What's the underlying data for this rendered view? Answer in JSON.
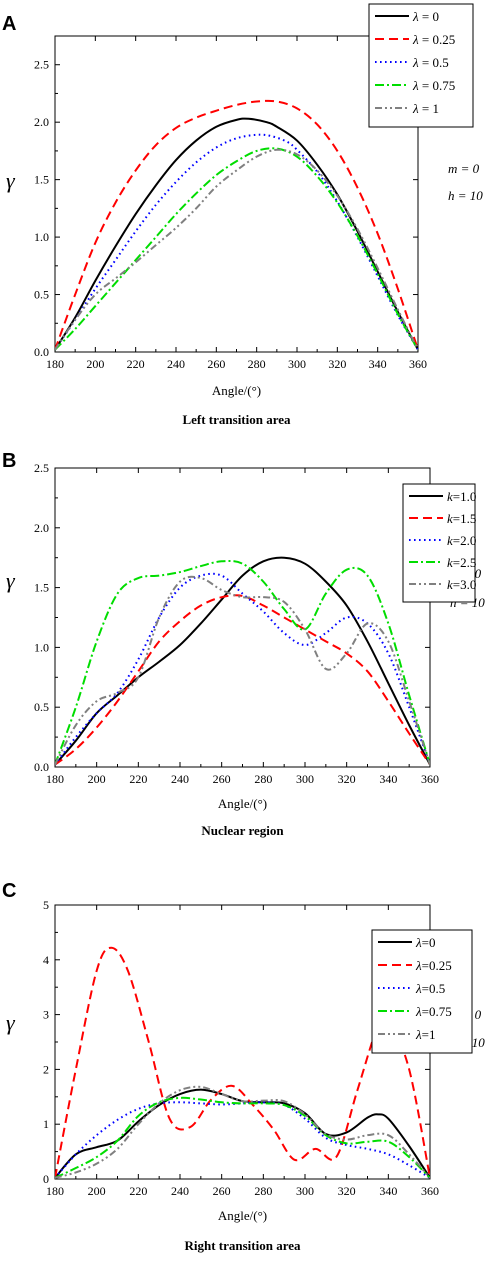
{
  "chart_data": [
    {
      "type": "line",
      "panel_label": "A",
      "caption": "Left transition area",
      "xlabel": "Angle/(°)",
      "ylabel": "γ",
      "xlim": [
        180,
        360
      ],
      "ylim": [
        0,
        2.75
      ],
      "xticks": [
        "180",
        "200",
        "220",
        "240",
        "260",
        "280",
        "300",
        "320",
        "340",
        "360"
      ],
      "yticks": [
        "0.0",
        "0.5",
        "1.0",
        "1.5",
        "2.0",
        "2.5"
      ],
      "params": [
        "m = 0",
        "h = 10"
      ],
      "legend_position": "top-right",
      "series": [
        {
          "name": "λ = 0",
          "color": "#000000",
          "dash": "solid",
          "x": [
            180,
            190,
            200,
            210,
            220,
            230,
            240,
            250,
            260,
            270,
            276,
            285,
            290,
            300,
            310,
            320,
            330,
            340,
            350,
            360
          ],
          "y": [
            0.02,
            0.3,
            0.62,
            0.92,
            1.2,
            1.45,
            1.67,
            1.84,
            1.96,
            2.02,
            2.03,
            2.0,
            1.96,
            1.84,
            1.63,
            1.37,
            1.05,
            0.7,
            0.35,
            0.02
          ]
        },
        {
          "name": "λ = 0.25",
          "color": "#ff0000",
          "dash": "long",
          "x": [
            180,
            190,
            200,
            210,
            220,
            230,
            240,
            250,
            260,
            270,
            280,
            290,
            300,
            310,
            320,
            330,
            340,
            350,
            360
          ],
          "y": [
            0.02,
            0.5,
            0.95,
            1.3,
            1.58,
            1.8,
            1.95,
            2.04,
            2.1,
            2.15,
            2.18,
            2.18,
            2.12,
            1.98,
            1.75,
            1.43,
            1.03,
            0.55,
            0.02
          ]
        },
        {
          "name": "λ = 0.5",
          "color": "#0000ff",
          "dash": "dot",
          "x": [
            180,
            190,
            200,
            210,
            220,
            230,
            240,
            250,
            260,
            270,
            280,
            287,
            295,
            300,
            310,
            320,
            330,
            340,
            350,
            360
          ],
          "y": [
            0.02,
            0.28,
            0.55,
            0.8,
            1.05,
            1.28,
            1.48,
            1.65,
            1.78,
            1.86,
            1.89,
            1.88,
            1.83,
            1.76,
            1.57,
            1.31,
            1.0,
            0.66,
            0.32,
            0.02
          ]
        },
        {
          "name": "λ = 0.75",
          "color": "#00dd00",
          "dash": "dashdot",
          "x": [
            180,
            190,
            200,
            210,
            220,
            230,
            240,
            250,
            260,
            270,
            280,
            290,
            300,
            310,
            320,
            330,
            340,
            350,
            360
          ],
          "y": [
            0.02,
            0.2,
            0.4,
            0.6,
            0.8,
            1.0,
            1.2,
            1.38,
            1.54,
            1.66,
            1.75,
            1.77,
            1.7,
            1.53,
            1.3,
            1.01,
            0.68,
            0.33,
            0.02
          ]
        },
        {
          "name": "λ = 1",
          "color": "#808080",
          "dash": "dashdotdot",
          "x": [
            180,
            190,
            200,
            210,
            220,
            230,
            240,
            250,
            260,
            270,
            280,
            290,
            300,
            310,
            320,
            330,
            340,
            350,
            360
          ],
          "y": [
            0.02,
            0.28,
            0.5,
            0.64,
            0.78,
            0.93,
            1.08,
            1.25,
            1.44,
            1.58,
            1.7,
            1.76,
            1.72,
            1.58,
            1.36,
            1.07,
            0.73,
            0.37,
            0.02
          ]
        }
      ]
    },
    {
      "type": "line",
      "panel_label": "B",
      "caption": "Nuclear region",
      "xlabel": "Angle/(°)",
      "ylabel": "γ",
      "xlim": [
        180,
        360
      ],
      "ylim": [
        0,
        2.5
      ],
      "xticks": [
        "180",
        "200",
        "220",
        "240",
        "260",
        "280",
        "300",
        "320",
        "340",
        "360"
      ],
      "yticks": [
        "0.0",
        "0.5",
        "1.0",
        "1.5",
        "2.0",
        "2.5"
      ],
      "params": [
        "m = 0",
        "h = 10"
      ],
      "legend_position": "top-right",
      "series": [
        {
          "name": "k=1.0",
          "color": "#000000",
          "dash": "solid",
          "x": [
            180,
            190,
            200,
            210,
            220,
            230,
            240,
            250,
            260,
            270,
            280,
            290,
            300,
            310,
            320,
            330,
            340,
            350,
            360
          ],
          "y": [
            0.02,
            0.22,
            0.45,
            0.6,
            0.75,
            0.88,
            1.02,
            1.2,
            1.4,
            1.6,
            1.72,
            1.75,
            1.7,
            1.55,
            1.35,
            1.05,
            0.7,
            0.35,
            0.02
          ]
        },
        {
          "name": "k=1.5",
          "color": "#ff0000",
          "dash": "long",
          "x": [
            180,
            190,
            200,
            210,
            220,
            230,
            240,
            250,
            260,
            270,
            280,
            290,
            300,
            310,
            320,
            330,
            340,
            350,
            360
          ],
          "y": [
            0.02,
            0.15,
            0.33,
            0.55,
            0.8,
            1.05,
            1.22,
            1.35,
            1.42,
            1.43,
            1.35,
            1.25,
            1.15,
            1.05,
            0.95,
            0.8,
            0.55,
            0.28,
            0.02
          ]
        },
        {
          "name": "k=2.0",
          "color": "#0000ff",
          "dash": "dot",
          "x": [
            180,
            190,
            200,
            210,
            220,
            230,
            240,
            250,
            260,
            270,
            280,
            290,
            300,
            310,
            320,
            330,
            340,
            350,
            360
          ],
          "y": [
            0.02,
            0.25,
            0.45,
            0.62,
            0.9,
            1.25,
            1.5,
            1.6,
            1.6,
            1.45,
            1.3,
            1.12,
            1.02,
            1.12,
            1.25,
            1.2,
            0.95,
            0.5,
            0.02
          ]
        },
        {
          "name": "k=2.5",
          "color": "#00dd00",
          "dash": "dashdot",
          "x": [
            180,
            190,
            200,
            210,
            220,
            230,
            240,
            250,
            260,
            270,
            280,
            290,
            300,
            310,
            320,
            330,
            340,
            350,
            360
          ],
          "y": [
            0.02,
            0.5,
            1.05,
            1.45,
            1.58,
            1.6,
            1.63,
            1.68,
            1.72,
            1.7,
            1.55,
            1.32,
            1.15,
            1.45,
            1.65,
            1.6,
            1.2,
            0.6,
            0.02
          ]
        },
        {
          "name": "k=3.0",
          "color": "#808080",
          "dash": "dashdotdot",
          "x": [
            180,
            190,
            200,
            210,
            220,
            230,
            240,
            250,
            260,
            270,
            280,
            290,
            300,
            310,
            320,
            330,
            340,
            350,
            360
          ],
          "y": [
            0.02,
            0.35,
            0.55,
            0.62,
            0.75,
            1.25,
            1.55,
            1.58,
            1.48,
            1.42,
            1.42,
            1.38,
            1.15,
            0.82,
            0.95,
            1.2,
            1.05,
            0.55,
            0.02
          ]
        }
      ]
    },
    {
      "type": "line",
      "panel_label": "C",
      "caption": "Right transition area",
      "xlabel": "Angle/(°)",
      "ylabel": "γ",
      "xlim": [
        180,
        360
      ],
      "ylim": [
        0,
        5
      ],
      "xticks": [
        "180",
        "200",
        "220",
        "240",
        "260",
        "280",
        "300",
        "320",
        "340",
        "360"
      ],
      "yticks": [
        "0",
        "1",
        "2",
        "3",
        "4",
        "5"
      ],
      "params": [
        "m = 0",
        "h = 10"
      ],
      "legend_position": "top-right",
      "series": [
        {
          "name": "λ=0",
          "color": "#000000",
          "dash": "solid",
          "x": [
            180,
            190,
            200,
            210,
            220,
            230,
            240,
            250,
            260,
            270,
            280,
            290,
            300,
            310,
            320,
            330,
            335,
            340,
            350,
            360
          ],
          "y": [
            0.02,
            0.45,
            0.58,
            0.7,
            1.05,
            1.35,
            1.55,
            1.63,
            1.55,
            1.42,
            1.4,
            1.38,
            1.2,
            0.82,
            0.85,
            1.12,
            1.18,
            1.1,
            0.6,
            0.02
          ]
        },
        {
          "name": "λ=0.25",
          "color": "#ff0000",
          "dash": "long",
          "x": [
            180,
            190,
            200,
            207,
            215,
            225,
            235,
            245,
            255,
            265,
            275,
            285,
            295,
            305,
            315,
            325,
            335,
            340,
            350,
            360
          ],
          "y": [
            0.02,
            2.0,
            3.8,
            4.22,
            3.8,
            2.5,
            1.1,
            0.95,
            1.45,
            1.7,
            1.35,
            0.9,
            0.35,
            0.55,
            0.4,
            1.6,
            2.8,
            2.9,
            2.0,
            0.02
          ]
        },
        {
          "name": "λ=0.5",
          "color": "#0000ff",
          "dash": "dot",
          "x": [
            180,
            190,
            200,
            210,
            220,
            230,
            240,
            250,
            260,
            270,
            280,
            290,
            300,
            310,
            320,
            330,
            340,
            350,
            360
          ],
          "y": [
            0.02,
            0.45,
            0.8,
            1.08,
            1.28,
            1.38,
            1.4,
            1.38,
            1.36,
            1.38,
            1.4,
            1.35,
            1.1,
            0.75,
            0.62,
            0.55,
            0.45,
            0.25,
            0.02
          ]
        },
        {
          "name": "λ=0.75",
          "color": "#00dd00",
          "dash": "dashdot",
          "x": [
            180,
            190,
            200,
            210,
            220,
            230,
            240,
            250,
            260,
            270,
            280,
            290,
            300,
            310,
            320,
            330,
            340,
            350,
            360
          ],
          "y": [
            0.02,
            0.2,
            0.4,
            0.7,
            1.15,
            1.4,
            1.48,
            1.45,
            1.4,
            1.38,
            1.38,
            1.35,
            1.15,
            0.8,
            0.65,
            0.68,
            0.68,
            0.4,
            0.02
          ]
        },
        {
          "name": "λ=1",
          "color": "#808080",
          "dash": "dashdotdot",
          "x": [
            180,
            190,
            200,
            210,
            220,
            230,
            240,
            250,
            260,
            270,
            280,
            290,
            300,
            310,
            320,
            330,
            340,
            350,
            360
          ],
          "y": [
            0.02,
            0.12,
            0.28,
            0.55,
            1.0,
            1.38,
            1.62,
            1.68,
            1.55,
            1.42,
            1.43,
            1.42,
            1.18,
            0.82,
            0.72,
            0.8,
            0.8,
            0.45,
            0.02
          ]
        }
      ]
    }
  ]
}
